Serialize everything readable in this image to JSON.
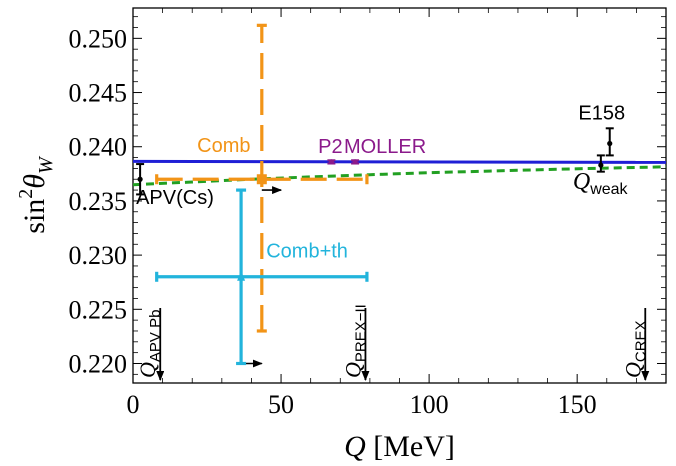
{
  "chart_data": {
    "type": "scatter",
    "xlabel_italic": "Q",
    "xlabel_unit": " [MeV]",
    "ylabel_base": "sin",
    "ylabel_sup": "2",
    "ylabel_theta": "θ",
    "ylabel_sub": "W",
    "xlim": [
      0,
      180
    ],
    "ylim": [
      0.2182,
      0.2528
    ],
    "x_ticks": [
      0,
      50,
      100,
      150
    ],
    "y_ticks": [
      0.22,
      0.225,
      0.23,
      0.235,
      0.24,
      0.245,
      0.25
    ],
    "y_tick_labels": [
      "0.220",
      "0.225",
      "0.230",
      "0.235",
      "0.240",
      "0.245",
      "0.250"
    ],
    "grid": false,
    "curves": [
      {
        "style": "solid",
        "color": "#1f1fd6",
        "x": [
          0,
          180
        ],
        "y": [
          0.23865,
          0.23855
        ]
      },
      {
        "style": "dashed",
        "color": "#22a022",
        "x": [
          0,
          20,
          40,
          60,
          80,
          100,
          120,
          140,
          160,
          180
        ],
        "y": [
          0.2365,
          0.23675,
          0.237,
          0.23722,
          0.23742,
          0.2376,
          0.23775,
          0.2379,
          0.23803,
          0.23815
        ]
      }
    ],
    "points": [
      {
        "name": "APV(Cs)",
        "color": "#000000",
        "x": 2.4,
        "y": 0.237,
        "yerr": [
          0.2356,
          0.2384
        ],
        "xerr": null,
        "label": "APV(Cs)"
      },
      {
        "name": "Qweak",
        "color": "#000000",
        "x": 158,
        "y": 0.2383,
        "yerr": [
          0.2377,
          0.2392
        ],
        "xerr": null,
        "label_main": "Q",
        "label_sub": "weak"
      },
      {
        "name": "E158",
        "color": "#000000",
        "x": 161,
        "y": 0.2403,
        "yerr": [
          0.2392,
          0.2417
        ],
        "xerr": null,
        "label": "E158"
      },
      {
        "name": "P2",
        "color": "#8b1a8b",
        "x": 67,
        "y": 0.2386,
        "yerr": [
          0.23845,
          0.23875
        ],
        "xerr": null,
        "label": "P2"
      },
      {
        "name": "MOLLER",
        "color": "#8b1a8b",
        "x": 75,
        "y": 0.2386,
        "yerr": [
          0.23845,
          0.23875
        ],
        "xerr": null,
        "label": "MOLLER"
      },
      {
        "name": "Comb",
        "color": "#f29417",
        "x": 43.5,
        "y": 0.237,
        "yerr": [
          0.223,
          0.2512
        ],
        "xerr": [
          8,
          79
        ],
        "label": "Comb"
      },
      {
        "name": "Comb+th",
        "color": "#22b4dc",
        "x": 36.5,
        "y": 0.228,
        "yerr": [
          0.22,
          0.236
        ],
        "xerr": [
          8,
          79
        ],
        "label": "Comb+th"
      }
    ],
    "shift_arrows": [
      {
        "x_from": 43.5,
        "x_to": 50,
        "y": 0.236
      },
      {
        "x_from": 36.5,
        "x_to": 43.5,
        "y": 0.22
      }
    ],
    "q_markers": [
      {
        "x": 9.2,
        "label_main": "Q",
        "label_sub": "APV Pb"
      },
      {
        "x": 78.5,
        "label_main": "Q",
        "label_sub": "PREX−II"
      },
      {
        "x": 173,
        "label_main": "Q",
        "label_sub": "CREX"
      }
    ]
  }
}
